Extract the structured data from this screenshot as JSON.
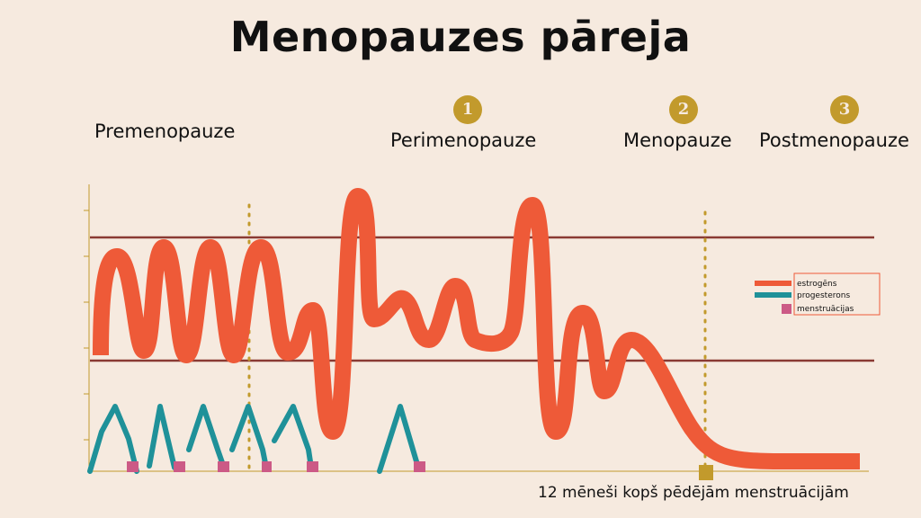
{
  "title": "Menopauzes pāreja",
  "phases": [
    {
      "label": "Premenopauze",
      "badge": ""
    },
    {
      "label": "Perimenopauze",
      "badge": "1"
    },
    {
      "label": "Menopauze",
      "badge": "2"
    },
    {
      "label": "Postmenopauze",
      "badge": "3"
    }
  ],
  "legend": {
    "estrogen": "estrogēns",
    "progesterone": "progesterons",
    "menstruation": "menstruācijas"
  },
  "footnote": "12 mēneši kopš pēdējām menstruācijām",
  "colors": {
    "estrogen": "#ee5a38",
    "progesterone": "#1f9199",
    "menstruation": "#cc5a86",
    "threshold": "#8a3a33",
    "marker": "#c29a2c",
    "axis": "#c29a2c"
  }
}
